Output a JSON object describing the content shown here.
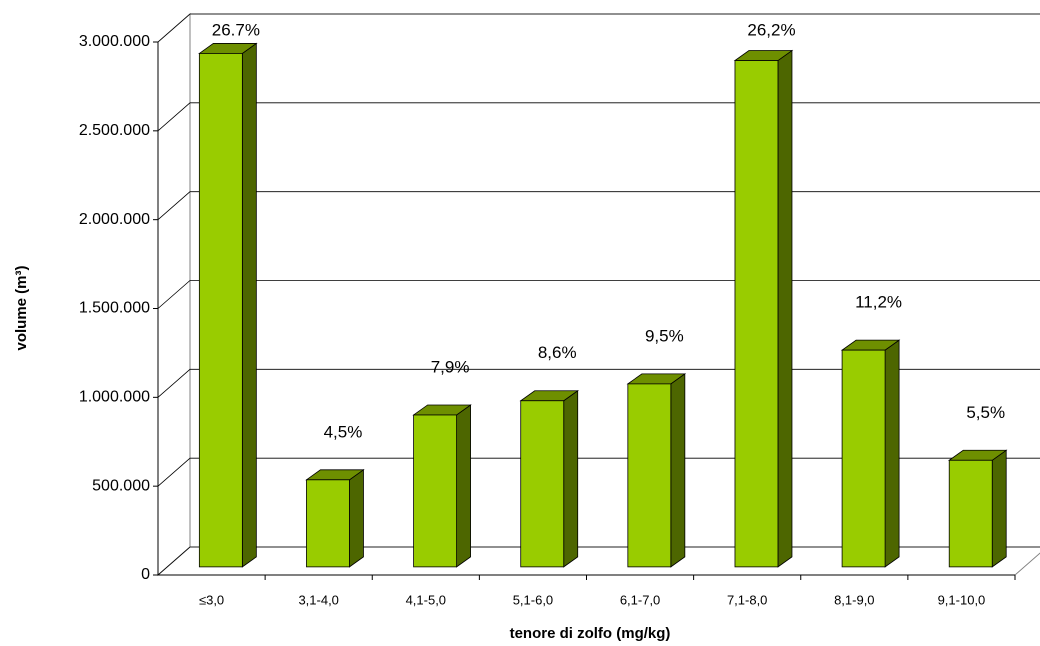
{
  "chart_data": {
    "type": "bar3d",
    "x_label": "tenore di zolfo (mg/kg)",
    "y_label": "volume (m³)",
    "categories": [
      "≤3,0",
      "3,1-4,0",
      "4,1-5,0",
      "5,1-6,0",
      "6,1-7,0",
      "7,1-8,0",
      "8,1-9,0",
      "9,1-10,0"
    ],
    "values": [
      2890000,
      490000,
      855000,
      935000,
      1030000,
      2850000,
      1220000,
      600000
    ],
    "labels": [
      "26.7%",
      "4,5%",
      "7,9%",
      "8,6%",
      "9,5%",
      "26,2%",
      "11,2%",
      "5,5%"
    ],
    "color": "#99cc00",
    "ylim": [
      0,
      3000000
    ],
    "yticks": [
      0,
      {
        "value": 500000,
        "label": "500.000"
      },
      {
        "value": 1000000,
        "label": "1.000.000"
      },
      {
        "value": 1500000,
        "label": "1.500.000"
      },
      {
        "value": 2000000,
        "label": "2.000.000"
      },
      {
        "value": 2500000,
        "label": "2.500.000"
      },
      {
        "value": 3000000,
        "label": "3.000.000"
      }
    ],
    "grid": true
  }
}
